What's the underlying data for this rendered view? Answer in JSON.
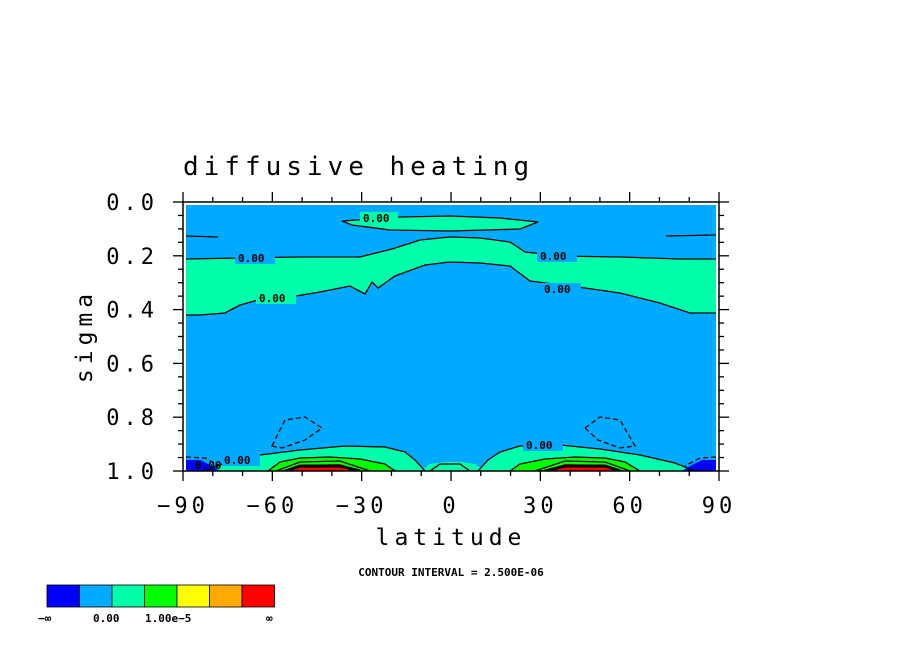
{
  "chart_data": {
    "type": "contour",
    "title": "diffusive heating",
    "xlabel": "latitude",
    "ylabel": "sigma",
    "xlim": [
      -90,
      90
    ],
    "ylim": [
      1.0,
      0.0
    ],
    "x_ticks": [
      "−90",
      "−60",
      "−30",
      "0",
      "30",
      "60",
      "90"
    ],
    "y_ticks": [
      "0.0",
      "0.2",
      "0.4",
      "0.6",
      "0.8",
      "1.0"
    ],
    "contour_labels": [
      "0.00",
      "0.00",
      "0.00",
      "0.00",
      "0.00",
      "0.00",
      "0.00",
      "0.00"
    ],
    "footnote": "CONTOUR INTERVAL = 2.500E-06",
    "colorbar": {
      "colors": [
        "#0000ff",
        "#00aaff",
        "#00ffaa",
        "#00ff00",
        "#ffff00",
        "#ffaa00",
        "#ff0000"
      ],
      "labels": [
        "−∞",
        "0.00",
        "1.00e−5",
        "∞"
      ]
    }
  }
}
